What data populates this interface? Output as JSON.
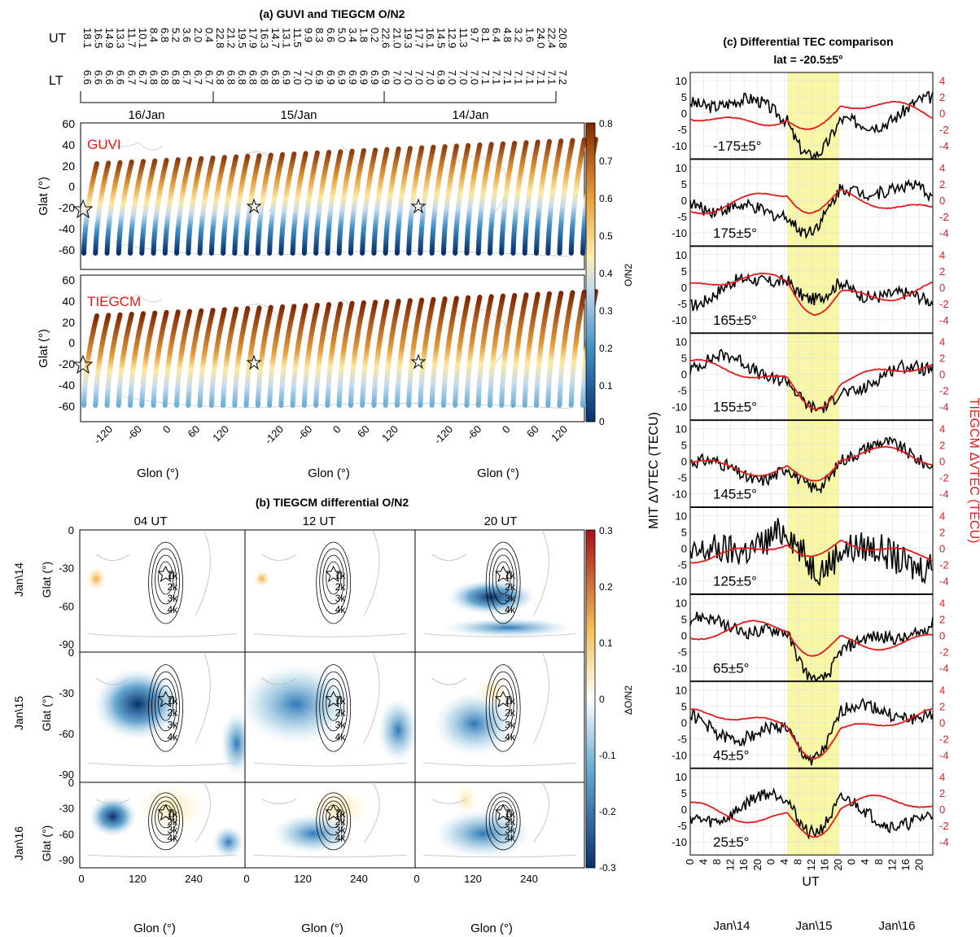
{
  "panel_a": {
    "title": "(a) GUVI and TIEGCM O/N2",
    "ut_label": "UT",
    "lt_label": "LT",
    "ut_row1": [
      "18.1",
      "16.5",
      "14.9",
      "13.3",
      "11.7",
      "10.1",
      "8.4",
      "6.8",
      "5.2",
      "3.6",
      "2.0",
      "0.4",
      "22.8",
      "21.2",
      "19.5",
      "17.9",
      "16.3",
      "14.7",
      "13.1",
      "11.5",
      "9.9",
      "8.3",
      "6.6",
      "5.0",
      "3.4",
      "1.8",
      "0.2",
      "22.6",
      "21.0",
      "19.3",
      "17.7",
      "16.1",
      "14.5",
      "12.9",
      "11.3",
      "9.7",
      "8.1",
      "6.4",
      "4.8",
      "3.2",
      "1.6",
      "24.0",
      "22.4",
      "20.8"
    ],
    "lt_row": [
      "6.6",
      "6.6",
      "6.6",
      "6.6",
      "6.7",
      "6.7",
      "6.8",
      "6.8",
      "6.8",
      "6.7",
      "6.7",
      "6.7",
      "6.8",
      "6.8",
      "6.8",
      "6.8",
      "6.8",
      "6.8",
      "6.9",
      "7.0",
      "7.0",
      "6.9",
      "6.9",
      "6.9",
      "6.9",
      "6.9",
      "6.9",
      "6.9",
      "7.0",
      "7.0",
      "7.0",
      "7.0",
      "6.9",
      "7.0",
      "7.0",
      "7.0",
      "7.1",
      "7.1",
      "7.1",
      "7.1",
      "7.1",
      "7.1",
      "7.1",
      "7.2"
    ],
    "day_labels": [
      "16/Jan",
      "15/Jan",
      "14/Jan"
    ],
    "subplots": [
      {
        "label": "GUVI"
      },
      {
        "label": "TIEGCM"
      }
    ],
    "ylabel": "Glat (°)",
    "yticks": [
      "60",
      "40",
      "20",
      "0",
      "-20",
      "-40",
      "-60"
    ],
    "xticks": [
      "-120",
      "-60",
      "0",
      "60",
      "120"
    ],
    "xlabel": "Glon (°)",
    "colorbar": {
      "label": "O/N2",
      "ticks": [
        "0.8",
        "0.7",
        "0.6",
        "0.5",
        "0.4",
        "0.3",
        "0.2",
        "0.1",
        "0"
      ]
    }
  },
  "panel_b": {
    "title": "(b) TIEGCM differential O/N2",
    "col_titles": [
      "04 UT",
      "12 UT",
      "20 UT"
    ],
    "row_labels": [
      "Jan\\14",
      "Jan\\15",
      "Jan\\16"
    ],
    "yticks": [
      "0",
      "-30",
      "-60",
      "-90"
    ],
    "xticks": [
      "0",
      "120",
      "240"
    ],
    "ylabel": "Glat (°)",
    "xlabel": "Glon (°)",
    "contour_labels": [
      "1k",
      "2k",
      "3k",
      "4k"
    ],
    "colorbar": {
      "label": "ΔO/N2",
      "ticks": [
        "0.3",
        "0.2",
        "0.1",
        "0",
        "-0.1",
        "-0.2",
        "-0.3"
      ]
    }
  },
  "panel_c": {
    "title": "(c) Differential TEC comparison",
    "subtitle": "lat = -20.5±5°",
    "ylabel_left": "MIT ΔVTEC (TECU)",
    "ylabel_right": "TIEGCM ΔVTEC (TECU)",
    "left_ticks": [
      "10",
      "5",
      "0",
      "-5",
      "-10"
    ],
    "right_ticks": [
      "4",
      "2",
      "0",
      "-2",
      "-4"
    ],
    "lon_labels": [
      "-175±5°",
      "175±5°",
      "165±5°",
      "155±5°",
      "145±5°",
      "125±5°",
      "65±5°",
      "45±5°",
      "25±5°"
    ],
    "xticks": [
      "0",
      "4",
      "8",
      "12",
      "16",
      "20",
      "0",
      "4",
      "8",
      "12",
      "16",
      "20",
      "0",
      "4",
      "8",
      "12",
      "16",
      "20"
    ],
    "xlabel": "UT",
    "day_labels": [
      "Jan\\14",
      "Jan\\15",
      "Jan\\16"
    ]
  },
  "colors": {
    "mit": "#000000",
    "tiegcm": "#e41a1c",
    "highlight": "#f7f7a6",
    "text_red": "#e41a1c"
  }
}
